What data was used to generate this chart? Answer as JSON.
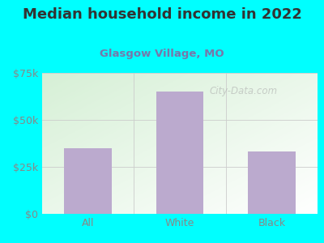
{
  "title": "Median household income in 2022",
  "subtitle": "Glasgow Village, MO",
  "categories": [
    "All",
    "White",
    "Black"
  ],
  "values": [
    35000,
    65000,
    33000
  ],
  "bar_color": "#bbaace",
  "background_color": "#00ffff",
  "plot_bg_top_left": "#d6f0d6",
  "plot_bg_bottom_right": "#ffffff",
  "title_color": "#333333",
  "subtitle_color": "#7777aa",
  "tick_color": "#888888",
  "ymax": 75000,
  "yticks": [
    0,
    25000,
    50000,
    75000
  ],
  "ytick_labels": [
    "$0",
    "$25k",
    "$50k",
    "$75k"
  ],
  "watermark": "City-Data.com",
  "title_fontsize": 13,
  "subtitle_fontsize": 9.5,
  "watermark_fontsize": 8.5
}
